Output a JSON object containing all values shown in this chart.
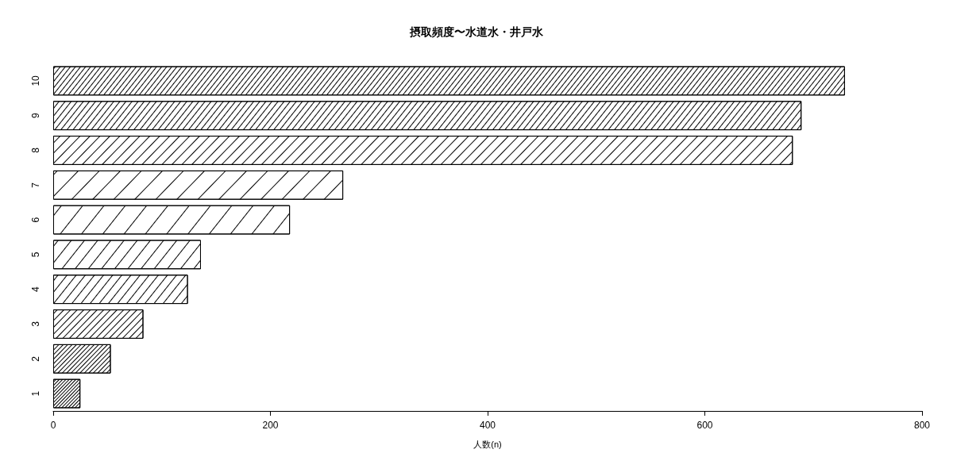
{
  "chart_data": {
    "type": "bar",
    "orientation": "horizontal",
    "title": "摂取頻度〜水道水・井戸水",
    "xlabel": "人数(n)",
    "categories": [
      "10",
      "9",
      "8",
      "7",
      "6",
      "5",
      "4",
      "3",
      "2",
      "1"
    ],
    "values": [
      729,
      689,
      681,
      267,
      218,
      136,
      124,
      83,
      53,
      25
    ],
    "color": "#ffffff",
    "xlim": [
      0,
      800
    ],
    "xticks": [
      0,
      200,
      400,
      600,
      800
    ],
    "grid": false
  }
}
